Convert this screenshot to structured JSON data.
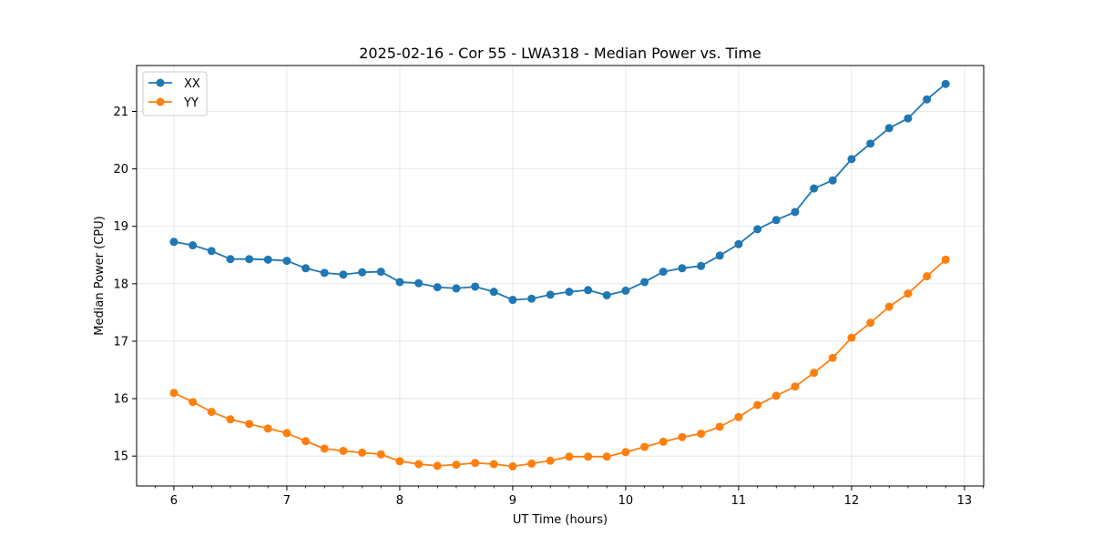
{
  "chart_data": {
    "type": "line",
    "title": "2025-02-16 - Cor 55 - LWA318 - Median Power vs. Time",
    "xlabel": "UT Time (hours)",
    "ylabel": "Median Power (CPU)",
    "xlim": [
      5.67,
      13.17
    ],
    "ylim": [
      14.48,
      21.8
    ],
    "xticks": [
      6,
      7,
      8,
      9,
      10,
      11,
      12,
      13
    ],
    "yticks": [
      15,
      16,
      17,
      18,
      19,
      20,
      21
    ],
    "grid": true,
    "legend_position": "top-left",
    "x": [
      6.0,
      6.167,
      6.333,
      6.5,
      6.667,
      6.833,
      7.0,
      7.167,
      7.333,
      7.5,
      7.667,
      7.833,
      8.0,
      8.167,
      8.333,
      8.5,
      8.667,
      8.833,
      9.0,
      9.167,
      9.333,
      9.5,
      9.667,
      9.833,
      10.0,
      10.167,
      10.333,
      10.5,
      10.667,
      10.833,
      11.0,
      11.167,
      11.333,
      11.5,
      11.667,
      11.833,
      12.0,
      12.167,
      12.333,
      12.5,
      12.667,
      12.833
    ],
    "series": [
      {
        "name": "XX",
        "color": "#1f77b4",
        "values": [
          18.73,
          18.67,
          18.57,
          18.43,
          18.43,
          18.42,
          18.4,
          18.27,
          18.19,
          18.16,
          18.2,
          18.21,
          18.03,
          18.01,
          17.94,
          17.92,
          17.95,
          17.86,
          17.72,
          17.74,
          17.81,
          17.86,
          17.89,
          17.8,
          17.88,
          18.03,
          18.21,
          18.27,
          18.31,
          18.49,
          18.69,
          18.95,
          19.11,
          19.25,
          19.66,
          19.8,
          20.17,
          20.44,
          20.71,
          20.88,
          21.21,
          21.48
        ]
      },
      {
        "name": "YY",
        "color": "#ff7f0e",
        "values": [
          16.1,
          15.94,
          15.77,
          15.64,
          15.56,
          15.48,
          15.4,
          15.26,
          15.13,
          15.09,
          15.06,
          15.03,
          14.91,
          14.86,
          14.83,
          14.85,
          14.88,
          14.86,
          14.82,
          14.87,
          14.92,
          14.99,
          14.99,
          14.99,
          15.07,
          15.16,
          15.25,
          15.33,
          15.39,
          15.51,
          15.68,
          15.89,
          16.05,
          16.21,
          16.45,
          16.71,
          17.06,
          17.32,
          17.6,
          17.83,
          18.13,
          18.42
        ]
      }
    ]
  }
}
